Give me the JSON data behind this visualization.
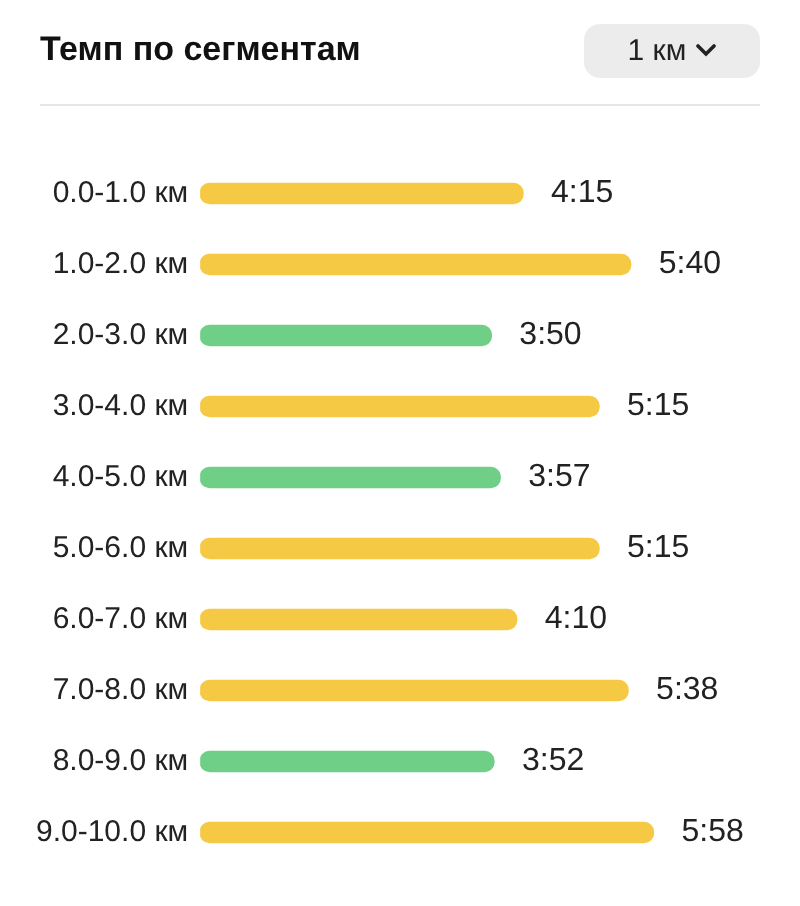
{
  "chart_data": {
    "type": "bar",
    "orientation": "horizontal",
    "title": "Темп по сегментам",
    "annotations": [
      "1 км"
    ],
    "categories": [
      "0.0-1.0 км",
      "1.0-2.0 км",
      "2.0-3.0 км",
      "3.0-4.0 км",
      "4.0-5.0 км",
      "5.0-6.0 км",
      "6.0-7.0 км",
      "7.0-8.0 км",
      "8.0-9.0 км",
      "9.0-10.0 км"
    ],
    "values": [
      4.25,
      5.667,
      3.833,
      5.25,
      3.95,
      5.25,
      4.167,
      5.633,
      3.867,
      5.967
    ],
    "value_labels": [
      "4:15",
      "5:40",
      "3:50",
      "5:15",
      "3:57",
      "5:15",
      "4:10",
      "5:38",
      "3:52",
      "5:58"
    ],
    "colors": [
      "#f6c944",
      "#f6c944",
      "#6fcf86",
      "#f6c944",
      "#6fcf86",
      "#f6c944",
      "#f6c944",
      "#f6c944",
      "#6fcf86",
      "#f6c944"
    ],
    "grid": false,
    "legend": false
  }
}
